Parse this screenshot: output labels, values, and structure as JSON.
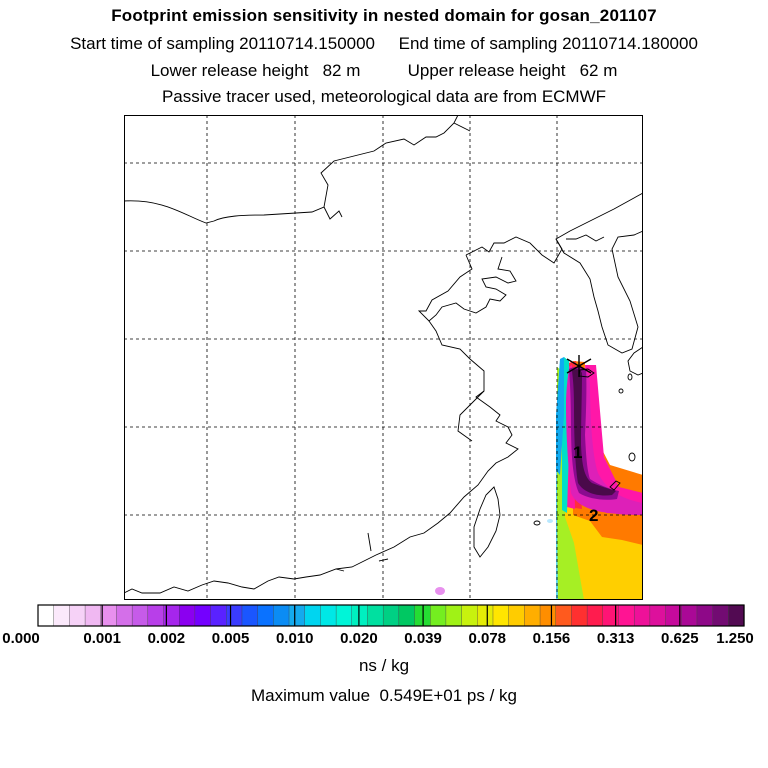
{
  "header": {
    "title": "Footprint emission sensitivity in nested domain for gosan_201107",
    "sampling_line": "Start time of sampling 20110714.150000     End time of sampling 20110714.180000",
    "release_line": "Lower release height   82 m          Upper release height   62 m",
    "tracer_line": "Passive tracer used, meteorological data are from ECMWF"
  },
  "map": {
    "markers": [
      {
        "label": "1"
      },
      {
        "label": "2"
      }
    ],
    "receptor": "star-marker"
  },
  "legend": {
    "tick_labels": [
      "0.000",
      "0.001",
      "0.002",
      "0.005",
      "0.010",
      "0.020",
      "0.039",
      "0.078",
      "0.156",
      "0.313",
      "0.625",
      "1.250"
    ],
    "colors": [
      "#ffffff",
      "#fbe9fb",
      "#f6d2f7",
      "#f0b8f2",
      "#e890ee",
      "#d46fe9",
      "#c65be9",
      "#b83fe9",
      "#a626ec",
      "#8b00f0",
      "#7400ff",
      "#5a22ff",
      "#3a3cff",
      "#1a56ff",
      "#0a72ff",
      "#0b8cf4",
      "#14aaee",
      "#00d5f0",
      "#00e8e6",
      "#00f5d8",
      "#00f0c0",
      "#00e0a0",
      "#00d084",
      "#00c862",
      "#25dd33",
      "#74ee20",
      "#a0f216",
      "#c8f20e",
      "#e4ec06",
      "#ffe600",
      "#ffcc00",
      "#ffae00",
      "#ff8e00",
      "#ff5a1e",
      "#ff3030",
      "#ff1c4e",
      "#ff1475",
      "#ff1493",
      "#ee1199",
      "#dd109c",
      "#c60a9c",
      "#aa0896",
      "#8e0888",
      "#720b72",
      "#520a52"
    ],
    "unit": "ns / kg",
    "max_text": "Maximum value  0.549E+01 ps / kg"
  }
}
